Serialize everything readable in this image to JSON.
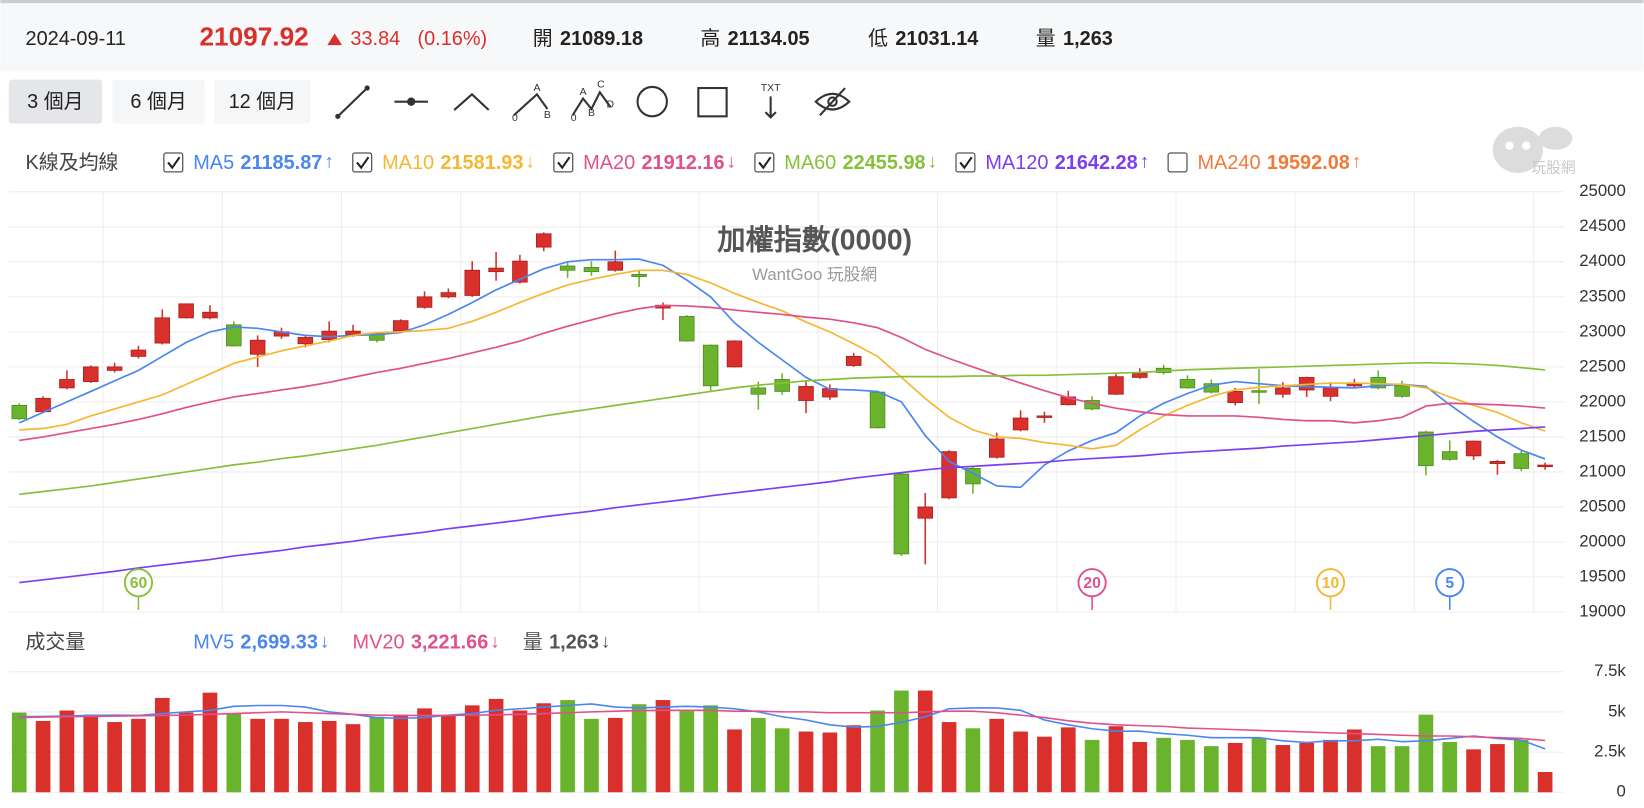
{
  "header": {
    "date": "2024-09-11",
    "price": 21097.92,
    "change": 33.84,
    "change_pct": "(0.16%)",
    "open": {
      "label": "開",
      "value": 21089.18
    },
    "high": {
      "label": "高",
      "value": 21134.05
    },
    "low": {
      "label": "低",
      "value": 21031.14
    },
    "volume": {
      "label": "量",
      "value": "1,263"
    }
  },
  "toolbar": {
    "ranges": [
      "3 個月",
      "6 個月",
      "12 個月"
    ],
    "selected": 0,
    "glyphs": {
      "abc_a": "A",
      "abc_0": "0",
      "abc_b": "B",
      "wave_a": "A",
      "wave_c": "C",
      "wave_0": "0",
      "wave_b": "B",
      "wave_d": "D",
      "txt": "TXT"
    }
  },
  "watermark": "玩股網",
  "chart_data": [
    {
      "type": "candlestick",
      "title": "加權指數(0000)",
      "subtitle": "WantGoo 玩股網",
      "legend_title": "K線及均線",
      "up_color": "#d9302c",
      "down_color": "#6ab42d",
      "open": [
        21950,
        21860,
        22200,
        22290,
        22450,
        22650,
        22840,
        23200,
        23200,
        23100,
        22680,
        22940,
        22830,
        22890,
        22960,
        22980,
        23010,
        23350,
        23500,
        23520,
        23860,
        23710,
        24210,
        23940,
        23920,
        23880,
        23820,
        23340,
        23220,
        22810,
        22500,
        22200,
        22320,
        22020,
        22070,
        22520,
        22140,
        20970,
        20340,
        20630,
        21050,
        21210,
        21600,
        21780,
        21960,
        22020,
        22110,
        22350,
        22480,
        22320,
        22260,
        21990,
        22160,
        22110,
        22170,
        22080,
        22230,
        22350,
        22230,
        21570,
        21290,
        21230,
        21120,
        21260,
        21089.18
      ],
      "high": [
        21980,
        22080,
        22450,
        22520,
        22560,
        22800,
        23320,
        23400,
        23380,
        23150,
        22950,
        23060,
        22960,
        23150,
        23100,
        23000,
        23180,
        23580,
        23620,
        24010,
        24140,
        24100,
        24420,
        23990,
        24010,
        24160,
        23870,
        23420,
        23240,
        22820,
        22880,
        22290,
        22410,
        22290,
        22250,
        22700,
        22160,
        20990,
        20700,
        21310,
        21080,
        21560,
        21880,
        21860,
        22160,
        22080,
        22400,
        22480,
        22530,
        22380,
        22320,
        22200,
        22470,
        22280,
        22360,
        22280,
        22330,
        22450,
        22300,
        21590,
        21450,
        21450,
        21170,
        21300,
        21134.05
      ],
      "low": [
        21740,
        21840,
        22180,
        22270,
        22420,
        22620,
        22820,
        23190,
        23180,
        22790,
        22500,
        22900,
        22780,
        22850,
        22930,
        22850,
        22990,
        23330,
        23480,
        23500,
        23730,
        23690,
        24150,
        23770,
        23800,
        23860,
        23640,
        23170,
        22860,
        22150,
        22490,
        21890,
        22100,
        21840,
        22030,
        22500,
        21620,
        19800,
        19680,
        20610,
        20690,
        21190,
        21580,
        21700,
        21950,
        21880,
        22100,
        22330,
        22390,
        22190,
        22120,
        21950,
        21970,
        22060,
        22070,
        22010,
        22200,
        22180,
        22060,
        20950,
        21160,
        21170,
        20960,
        21010,
        21031.14
      ],
      "close": [
        21760,
        22050,
        22320,
        22500,
        22500,
        22740,
        23200,
        23400,
        23280,
        22800,
        22880,
        23000,
        22920,
        23010,
        23010,
        22880,
        23160,
        23500,
        23560,
        23880,
        23910,
        24010,
        24400,
        23880,
        23860,
        24000,
        23790,
        23380,
        22870,
        22230,
        22870,
        22110,
        22150,
        22220,
        22190,
        22650,
        21630,
        19830,
        20500,
        21290,
        20830,
        21470,
        21770,
        21800,
        22070,
        21900,
        22360,
        22410,
        22420,
        22200,
        22140,
        22150,
        22140,
        22200,
        22350,
        22200,
        22270,
        22200,
        22080,
        21090,
        21180,
        21440,
        21150,
        21050,
        21097.92
      ],
      "series": [
        {
          "name": "MA5",
          "color": "#4a86f0",
          "checked": true,
          "current": 21185.87,
          "arrow": "↑",
          "values": [
            21700,
            21850,
            22000,
            22150,
            22300,
            22450,
            22650,
            22850,
            23000,
            23070,
            23050,
            23000,
            22950,
            22930,
            22950,
            22960,
            22990,
            23100,
            23250,
            23420,
            23600,
            23750,
            23900,
            24000,
            24030,
            24030,
            24040,
            23950,
            23740,
            23500,
            23130,
            22850,
            22600,
            22350,
            22180,
            22170,
            22150,
            22000,
            21520,
            21150,
            20980,
            20800,
            20780,
            21100,
            21300,
            21450,
            21560,
            21800,
            21980,
            22120,
            22240,
            22290,
            22260,
            22230,
            22220,
            22210,
            22200,
            22230,
            22250,
            22220,
            21960,
            21720,
            21500,
            21310,
            21185.87
          ]
        },
        {
          "name": "MA10",
          "color": "#f5b731",
          "checked": true,
          "current": 21581.93,
          "arrow": "↓",
          "values": [
            21600,
            21620,
            21680,
            21800,
            21900,
            22000,
            22100,
            22250,
            22400,
            22550,
            22640,
            22730,
            22800,
            22870,
            22950,
            22990,
            23000,
            23020,
            23050,
            23150,
            23280,
            23420,
            23550,
            23670,
            23750,
            23820,
            23880,
            23880,
            23820,
            23700,
            23550,
            23420,
            23300,
            23140,
            23000,
            22830,
            22650,
            22350,
            22050,
            21780,
            21600,
            21500,
            21480,
            21420,
            21380,
            21330,
            21380,
            21600,
            21800,
            21950,
            22080,
            22170,
            22210,
            22230,
            22250,
            22270,
            22270,
            22260,
            22250,
            22200,
            22070,
            21950,
            21850,
            21700,
            21581.93
          ]
        },
        {
          "name": "MA20",
          "color": "#e0508a",
          "checked": true,
          "current": 21912.16,
          "arrow": "↓",
          "values": [
            21450,
            21500,
            21560,
            21620,
            21680,
            21750,
            21830,
            21920,
            22000,
            22070,
            22120,
            22170,
            22220,
            22280,
            22350,
            22420,
            22480,
            22550,
            22620,
            22700,
            22780,
            22870,
            22980,
            23080,
            23170,
            23260,
            23330,
            23380,
            23370,
            23350,
            23310,
            23280,
            23250,
            23210,
            23180,
            23130,
            23060,
            22920,
            22750,
            22620,
            22500,
            22380,
            22270,
            22160,
            22060,
            21980,
            21910,
            21860,
            21820,
            21800,
            21800,
            21800,
            21780,
            21750,
            21730,
            21730,
            21700,
            21730,
            21780,
            21940,
            21980,
            21970,
            21960,
            21940,
            21912.16
          ]
        },
        {
          "name": "MA60",
          "color": "#86c03a",
          "checked": true,
          "current": 22455.98,
          "arrow": "↓",
          "values": [
            20680,
            20720,
            20760,
            20800,
            20850,
            20900,
            20950,
            21000,
            21050,
            21100,
            21140,
            21190,
            21230,
            21280,
            21330,
            21380,
            21440,
            21500,
            21560,
            21620,
            21680,
            21740,
            21800,
            21850,
            21900,
            21950,
            22000,
            22050,
            22100,
            22150,
            22200,
            22240,
            22270,
            22300,
            22320,
            22340,
            22350,
            22360,
            22360,
            22360,
            22370,
            22370,
            22380,
            22380,
            22390,
            22400,
            22410,
            22420,
            22440,
            22460,
            22470,
            22480,
            22490,
            22500,
            22510,
            22520,
            22530,
            22540,
            22550,
            22560,
            22550,
            22540,
            22520,
            22490,
            22455.98
          ]
        },
        {
          "name": "MA120",
          "color": "#7b3ff0",
          "checked": true,
          "current": 21642.28,
          "arrow": "↑",
          "values": [
            19420,
            19460,
            19500,
            19540,
            19580,
            19630,
            19670,
            19710,
            19750,
            19800,
            19840,
            19880,
            19930,
            19970,
            20010,
            20060,
            20100,
            20140,
            20190,
            20230,
            20270,
            20310,
            20360,
            20400,
            20440,
            20490,
            20530,
            20570,
            20610,
            20660,
            20700,
            20740,
            20780,
            20820,
            20860,
            20910,
            20950,
            20990,
            21030,
            21060,
            21080,
            21100,
            21120,
            21140,
            21170,
            21190,
            21210,
            21230,
            21260,
            21280,
            21300,
            21320,
            21340,
            21370,
            21390,
            21410,
            21430,
            21460,
            21490,
            21520,
            21550,
            21580,
            21600,
            21620,
            21642.28
          ]
        },
        {
          "name": "MA240",
          "color": "#f07a3a",
          "checked": false,
          "current": 19592.08,
          "arrow": "↑"
        }
      ],
      "markers": [
        {
          "label": "60",
          "index": 5,
          "color": "#86c03a"
        },
        {
          "label": "20",
          "index": 45,
          "color": "#e0508a"
        },
        {
          "label": "10",
          "index": 55,
          "color": "#f5b731"
        },
        {
          "label": "5",
          "index": 60,
          "color": "#4a86f0"
        }
      ],
      "ylim": [
        19000,
        25000
      ],
      "yticks": [
        19000,
        19500,
        20000,
        20500,
        21000,
        21500,
        22000,
        22500,
        23000,
        23500,
        24000,
        24500,
        25000
      ],
      "grid": true
    },
    {
      "type": "bar",
      "title": "成交量",
      "values": [
        4960,
        4440,
        5090,
        4830,
        4370,
        4570,
        5870,
        4960,
        6200,
        4890,
        4570,
        4570,
        4370,
        4440,
        4240,
        4700,
        4830,
        5220,
        4760,
        5410,
        5810,
        5090,
        5540,
        5740,
        4570,
        4630,
        5480,
        5740,
        5090,
        5410,
        3910,
        4630,
        3980,
        3780,
        3720,
        4170,
        5090,
        6330,
        6330,
        4370,
        3980,
        4570,
        3780,
        3460,
        4040,
        3260,
        4110,
        3130,
        3390,
        3260,
        2870,
        3070,
        3390,
        2940,
        3070,
        3260,
        3910,
        2870,
        2870,
        4830,
        3130,
        2670,
        3000,
        3260,
        1263
      ],
      "series": [
        {
          "name": "MV5",
          "color": "#4a86f0",
          "current": {
            "value": 2699.33,
            "label": "2,699.33"
          },
          "arrow": "↓",
          "values": [
            4700,
            4720,
            4750,
            4780,
            4800,
            4780,
            4900,
            5000,
            5100,
            5350,
            5400,
            5400,
            5300,
            5000,
            4850,
            4650,
            4600,
            4650,
            4800,
            4900,
            5100,
            5200,
            5300,
            5400,
            5500,
            5300,
            5250,
            5300,
            5350,
            5300,
            5200,
            5000,
            4700,
            4500,
            4200,
            4050,
            4100,
            4350,
            4700,
            5200,
            5250,
            5250,
            5100,
            4500,
            4200,
            3950,
            3800,
            3800,
            3650,
            3550,
            3400,
            3400,
            3400,
            3200,
            3100,
            3200,
            3200,
            3300,
            3150,
            3200,
            3350,
            3500,
            3350,
            3250,
            2699.33
          ]
        },
        {
          "name": "MV20",
          "color": "#e0508a",
          "current": {
            "value": 3221.66,
            "label": "3,221.66"
          },
          "arrow": "↓",
          "values": [
            4650,
            4680,
            4700,
            4720,
            4740,
            4760,
            4780,
            4800,
            4850,
            4900,
            4950,
            5000,
            4950,
            4900,
            4850,
            4800,
            4780,
            4780,
            4780,
            4800,
            4820,
            4850,
            4900,
            4950,
            5000,
            5050,
            5080,
            5100,
            5100,
            5100,
            5050,
            5050,
            5000,
            5000,
            4950,
            4950,
            4950,
            4950,
            5000,
            5050,
            5050,
            4950,
            4800,
            4650,
            4450,
            4300,
            4200,
            4150,
            4100,
            4000,
            3950,
            3900,
            3850,
            3800,
            3750,
            3700,
            3650,
            3600,
            3550,
            3500,
            3500,
            3450,
            3400,
            3350,
            3221.66
          ]
        },
        {
          "name": "量",
          "color": "#555555",
          "current": {
            "value": 1263,
            "label": "1,263"
          },
          "arrow": "↓"
        }
      ],
      "ylim": [
        0,
        7500
      ],
      "yticks": [
        0,
        {
          "value": 2500,
          "label": "2.5k"
        },
        {
          "value": 5000,
          "label": "5k"
        },
        {
          "value": 7500,
          "label": "7.5k"
        }
      ],
      "grid": true
    }
  ]
}
